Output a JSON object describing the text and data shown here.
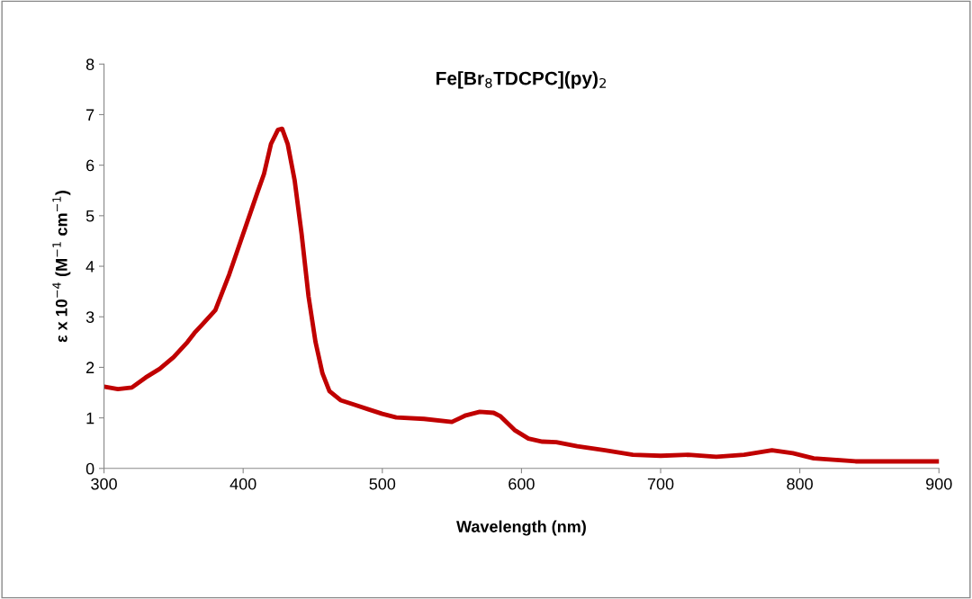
{
  "chart_data": {
    "type": "line",
    "title": "Fe[Br$_{8}$TDCPC](py)$_{2}$",
    "xlabel": "Wavelength (nm)",
    "ylabel": "ε x 10$^{−4}$ (M$^{−1}$ cm$^{−1}$)",
    "xlim": [
      300,
      900
    ],
    "xticks": [
      300,
      400,
      500,
      600,
      700,
      800,
      900
    ],
    "ylim": [
      0,
      8
    ],
    "yticks": [
      0,
      1,
      2,
      3,
      4,
      5,
      6,
      7,
      8
    ],
    "grid": false,
    "legend": false,
    "marker": "none",
    "line_style": "solid",
    "series": [
      {
        "color": "#c00000",
        "x": [
          300,
          310,
          320,
          330,
          340,
          350,
          360,
          365,
          370,
          380,
          390,
          400,
          410,
          415,
          420,
          425,
          428,
          432,
          437,
          442,
          447,
          452,
          457,
          462,
          470,
          480,
          490,
          500,
          510,
          530,
          550,
          560,
          570,
          580,
          585,
          595,
          605,
          615,
          625,
          640,
          660,
          680,
          700,
          720,
          740,
          760,
          780,
          795,
          810,
          840,
          870,
          900
        ],
        "values": [
          1.62,
          1.57,
          1.6,
          1.8,
          1.97,
          2.2,
          2.5,
          2.68,
          2.83,
          3.13,
          3.84,
          4.64,
          5.44,
          5.83,
          6.42,
          6.7,
          6.72,
          6.42,
          5.7,
          4.64,
          3.4,
          2.5,
          1.88,
          1.53,
          1.35,
          1.26,
          1.17,
          1.08,
          1.01,
          0.98,
          0.92,
          1.05,
          1.12,
          1.1,
          1.03,
          0.76,
          0.59,
          0.53,
          0.52,
          0.44,
          0.36,
          0.27,
          0.25,
          0.27,
          0.23,
          0.27,
          0.36,
          0.3,
          0.2,
          0.14,
          0.14,
          0.14
        ]
      }
    ]
  }
}
